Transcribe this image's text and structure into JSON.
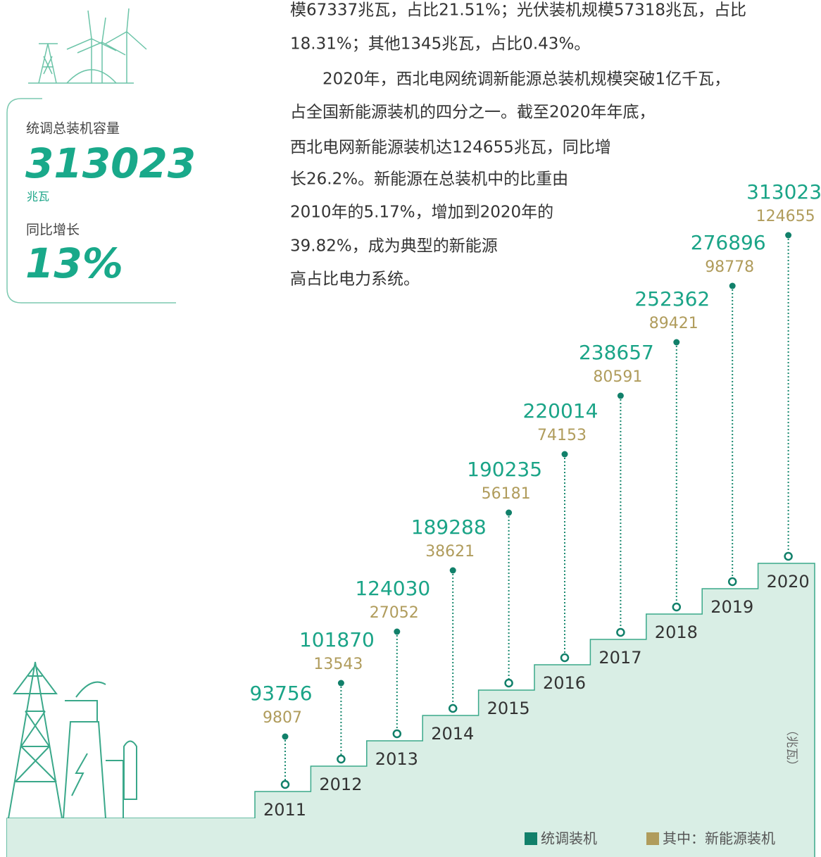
{
  "side_panel": {
    "capacity_label": "统调总装机容量",
    "capacity_value": 313023,
    "capacity_unit": "兆瓦",
    "growth_label": "同比增长",
    "growth_value": "13%"
  },
  "paragraph": {
    "lines": [
      "模67337兆瓦，占比21.51%；光伏装机规模57318兆瓦，占比",
      "18.31%；其他1345兆瓦，占比0.43%。",
      "2020年，西北电网统调新能源总装机规模突破1亿千瓦，",
      "占全国新能源装机的四分之一。截至2020年年底，",
      "西北电网新能源装机达124655兆瓦，同比增",
      "长26.2%。新能源在总装机中的比重由",
      "2010年的5.17%，增加到2020年的",
      "39.82%，成为典型的新能源",
      "高占比电力系统。"
    ]
  },
  "chart": {
    "steps": [
      {
        "year": "2011",
        "total": 93756,
        "new_energy": 9807
      },
      {
        "year": "2012",
        "total": 101870,
        "new_energy": 13543
      },
      {
        "year": "2013",
        "total": 124030,
        "new_energy": 27052
      },
      {
        "year": "2014",
        "total": 189288,
        "new_energy": 38621
      },
      {
        "year": "2015",
        "total": 190235,
        "new_energy": 56181
      },
      {
        "year": "2016",
        "total": 220014,
        "new_energy": 74153
      },
      {
        "year": "2017",
        "total": 238657,
        "new_energy": 80591
      },
      {
        "year": "2018",
        "total": 252362,
        "new_energy": 89421
      },
      {
        "year": "2019",
        "total": 276896,
        "new_energy": 98778
      },
      {
        "year": "2020",
        "total": 313023,
        "new_energy": 124655
      }
    ],
    "unit": "（兆瓦）",
    "legend": [
      "统调装机",
      "其中：新能源装机"
    ]
  }
}
